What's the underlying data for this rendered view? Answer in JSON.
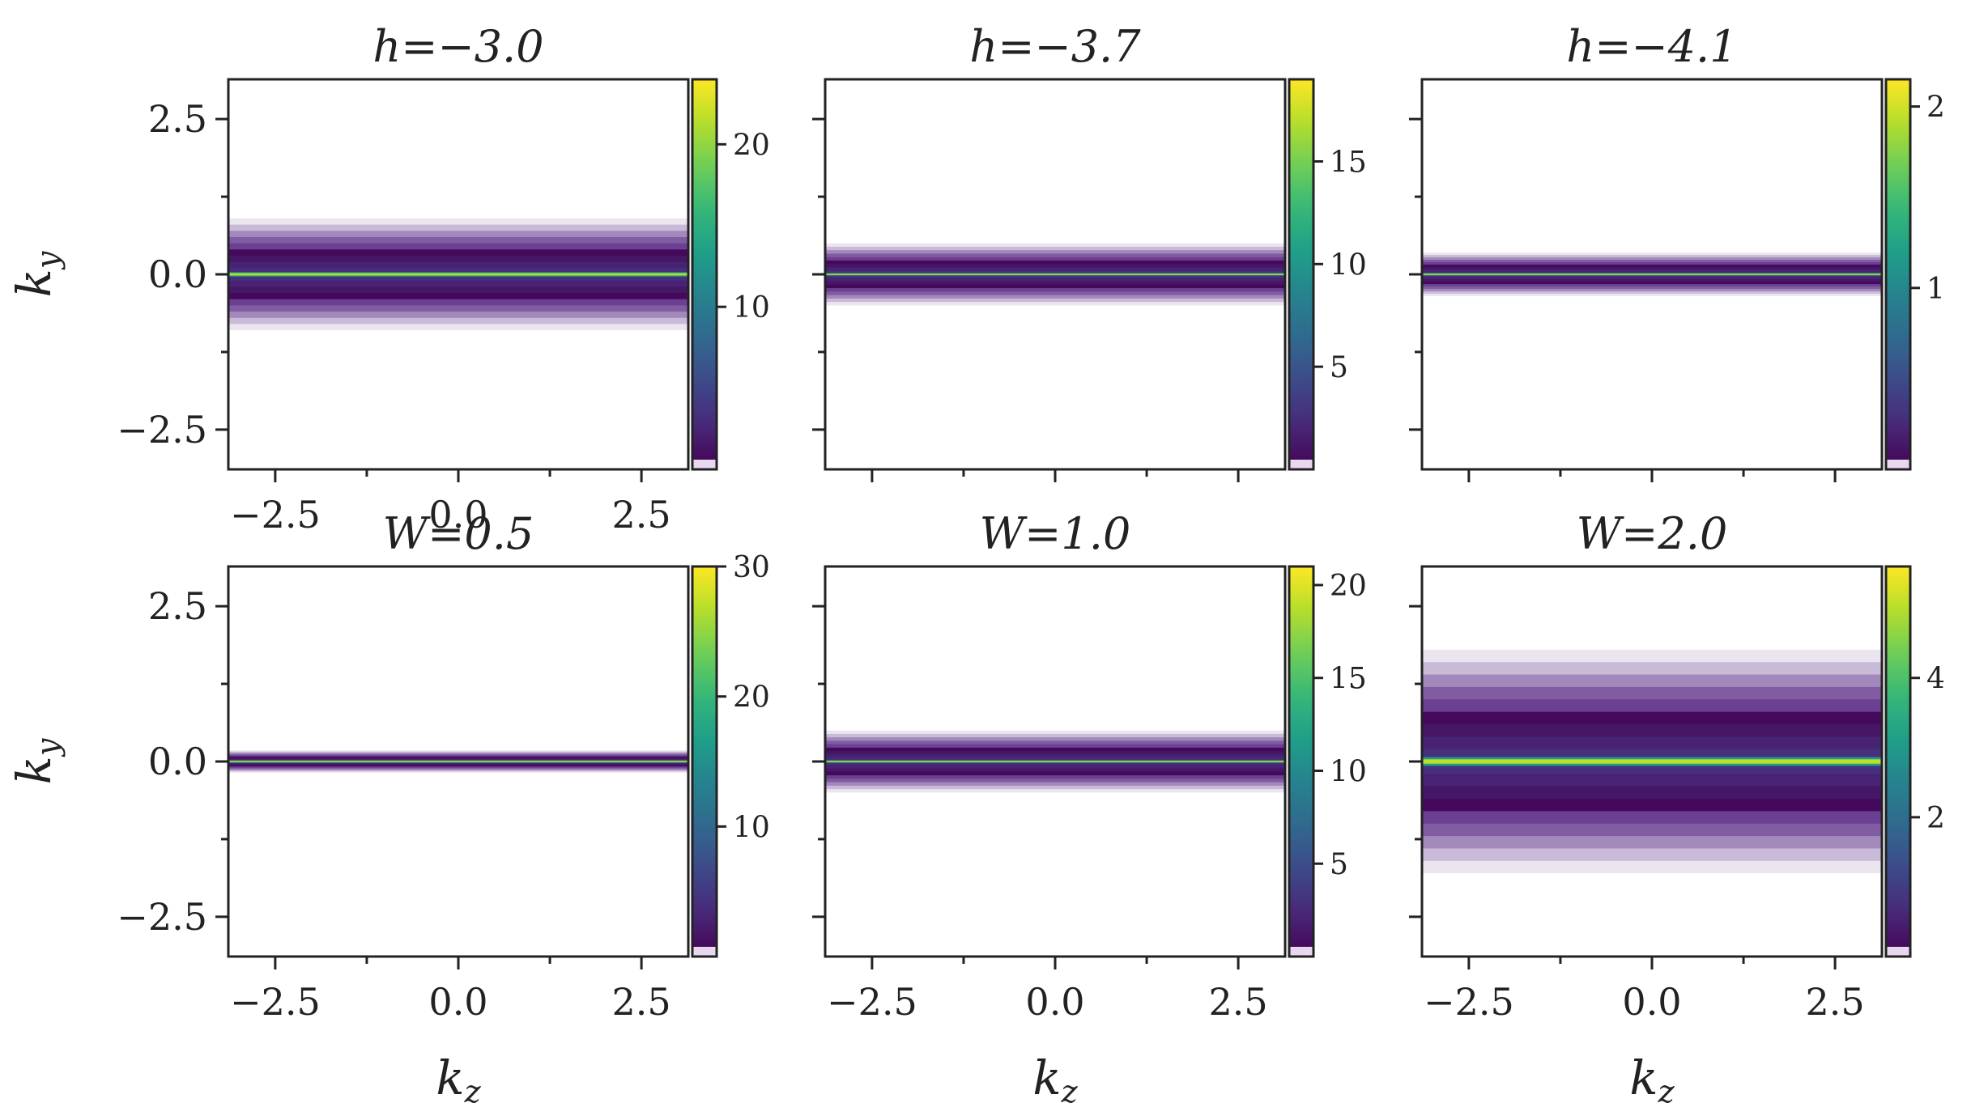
{
  "figure": {
    "shared_xlabel": "k",
    "shared_xlabel_sub": "z",
    "shared_ylabel": "k",
    "shared_ylabel_sub": "y"
  },
  "colormap": [
    "#440154",
    "#482878",
    "#3e4989",
    "#31688e",
    "#26828e",
    "#1f9e89",
    "#35b779",
    "#6ece58",
    "#b5de2b",
    "#fde725"
  ],
  "chart_data": [
    {
      "type": "heatmap",
      "title": "h=−3.0",
      "xlim": [
        -3.14,
        3.14
      ],
      "ylim": [
        -3.14,
        3.14
      ],
      "xticks": [
        -2.5,
        0.0,
        2.5
      ],
      "xtick_labels": [
        "−2.5",
        "0.0",
        "2.5"
      ],
      "yticks": [
        -2.5,
        0.0,
        2.5
      ],
      "ytick_labels": [
        "−2.5",
        "0.0",
        "2.5"
      ],
      "peak_ky": 0.0,
      "band_halfwidth": 0.9,
      "vmin": 0,
      "vmax": 24,
      "cbar_ticks": [
        10,
        20
      ],
      "cbar_tick_labels": [
        "10",
        "20"
      ]
    },
    {
      "type": "heatmap",
      "title": "h=−3.7",
      "xlim": [
        -3.14,
        3.14
      ],
      "ylim": [
        -3.14,
        3.14
      ],
      "xticks": [
        -2.5,
        0.0,
        2.5
      ],
      "xtick_labels": [
        "",
        "",
        ""
      ],
      "yticks": [
        -2.5,
        0.0,
        2.5
      ],
      "ytick_labels": [
        "",
        "",
        ""
      ],
      "peak_ky": 0.0,
      "band_halfwidth": 0.5,
      "vmin": 0,
      "vmax": 19,
      "cbar_ticks": [
        5,
        10,
        15
      ],
      "cbar_tick_labels": [
        "5",
        "10",
        "15"
      ]
    },
    {
      "type": "heatmap",
      "title": "h=−4.1",
      "xlim": [
        -3.14,
        3.14
      ],
      "ylim": [
        -3.14,
        3.14
      ],
      "xticks": [
        -2.5,
        0.0,
        2.5
      ],
      "xtick_labels": [
        "",
        "",
        ""
      ],
      "yticks": [
        -2.5,
        0.0,
        2.5
      ],
      "ytick_labels": [
        "",
        "",
        ""
      ],
      "peak_ky": 0.0,
      "band_halfwidth": 0.35,
      "vmin": 0,
      "vmax": 2.15,
      "cbar_ticks": [
        1,
        2
      ],
      "cbar_tick_labels": [
        "1",
        "2"
      ]
    },
    {
      "type": "heatmap",
      "title": "W=0.5",
      "xlim": [
        -3.14,
        3.14
      ],
      "ylim": [
        -3.14,
        3.14
      ],
      "xticks": [
        -2.5,
        0.0,
        2.5
      ],
      "xtick_labels": [
        "−2.5",
        "0.0",
        "2.5"
      ],
      "yticks": [
        -2.5,
        0.0,
        2.5
      ],
      "ytick_labels": [
        "−2.5",
        "0.0",
        "2.5"
      ],
      "peak_ky": 0.0,
      "band_halfwidth": 0.18,
      "vmin": 0,
      "vmax": 30,
      "cbar_ticks": [
        10,
        20,
        30
      ],
      "cbar_tick_labels": [
        "10",
        "20",
        "30"
      ]
    },
    {
      "type": "heatmap",
      "title": "W=1.0",
      "xlim": [
        -3.14,
        3.14
      ],
      "ylim": [
        -3.14,
        3.14
      ],
      "xticks": [
        -2.5,
        0.0,
        2.5
      ],
      "xtick_labels": [
        "−2.5",
        "0.0",
        "2.5"
      ],
      "yticks": [
        -2.5,
        0.0,
        2.5
      ],
      "ytick_labels": [
        "",
        "",
        ""
      ],
      "peak_ky": 0.0,
      "band_halfwidth": 0.5,
      "vmin": 0,
      "vmax": 21,
      "cbar_ticks": [
        5,
        10,
        15,
        20
      ],
      "cbar_tick_labels": [
        "5",
        "10",
        "15",
        "20"
      ]
    },
    {
      "type": "heatmap",
      "title": "W=2.0",
      "xlim": [
        -3.14,
        3.14
      ],
      "ylim": [
        -3.14,
        3.14
      ],
      "xticks": [
        -2.5,
        0.0,
        2.5
      ],
      "xtick_labels": [
        "−2.5",
        "0.0",
        "2.5"
      ],
      "yticks": [
        -2.5,
        0.0,
        2.5
      ],
      "ytick_labels": [
        "",
        "",
        ""
      ],
      "peak_ky": 0.0,
      "band_halfwidth": 1.8,
      "vmin": 0,
      "vmax": 5.6,
      "cbar_ticks": [
        2,
        4
      ],
      "cbar_tick_labels": [
        "2",
        "4"
      ]
    }
  ]
}
